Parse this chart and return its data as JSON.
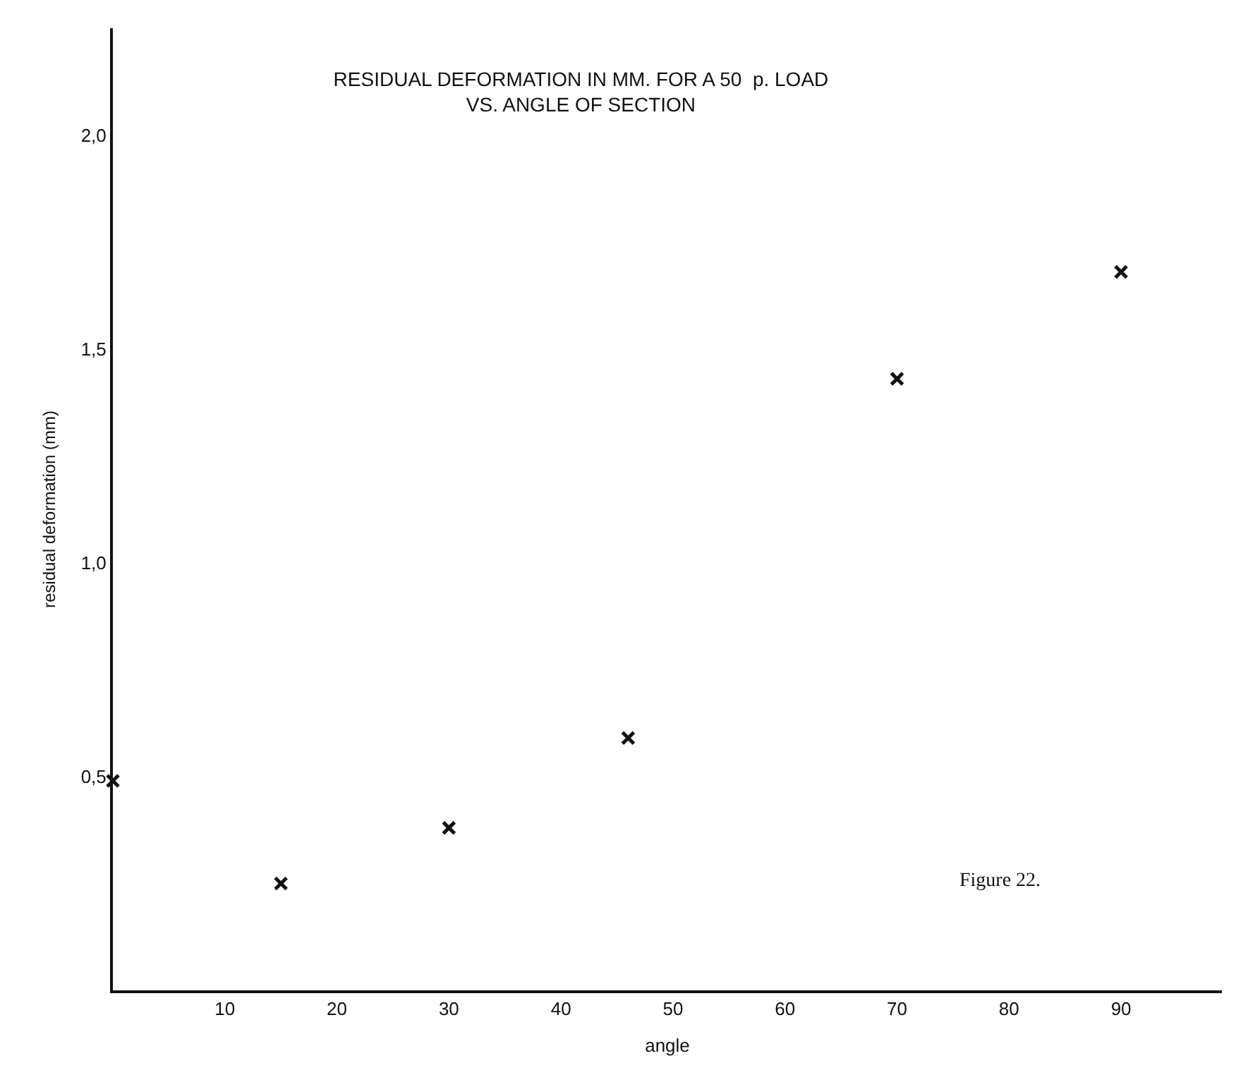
{
  "chart_data": {
    "type": "scatter",
    "title": "RESIDUAL DEFORMATION IN MM. FOR A 50  p. LOAD",
    "subtitle": "VS. ANGLE OF SECTION",
    "xlabel": "angle",
    "ylabel": "residual deformation (mm)",
    "x": [
      0,
      15,
      30,
      46,
      70,
      90
    ],
    "values": [
      0.49,
      0.25,
      0.38,
      0.59,
      1.43,
      1.68
    ],
    "color": "#111111",
    "marker": "cross",
    "xlim": [
      0,
      99
    ],
    "xticks": [
      10,
      20,
      30,
      40,
      50,
      60,
      70,
      80,
      90
    ],
    "ylim": [
      0,
      2.25
    ],
    "yticks": [
      {
        "value": 0.5,
        "label": "0,5"
      },
      {
        "value": 1.0,
        "label": "1,0"
      },
      {
        "value": 1.5,
        "label": "1,5"
      },
      {
        "value": 2.0,
        "label": "2,0"
      }
    ],
    "annotations": [
      {
        "text": "Figure 22."
      }
    ]
  }
}
